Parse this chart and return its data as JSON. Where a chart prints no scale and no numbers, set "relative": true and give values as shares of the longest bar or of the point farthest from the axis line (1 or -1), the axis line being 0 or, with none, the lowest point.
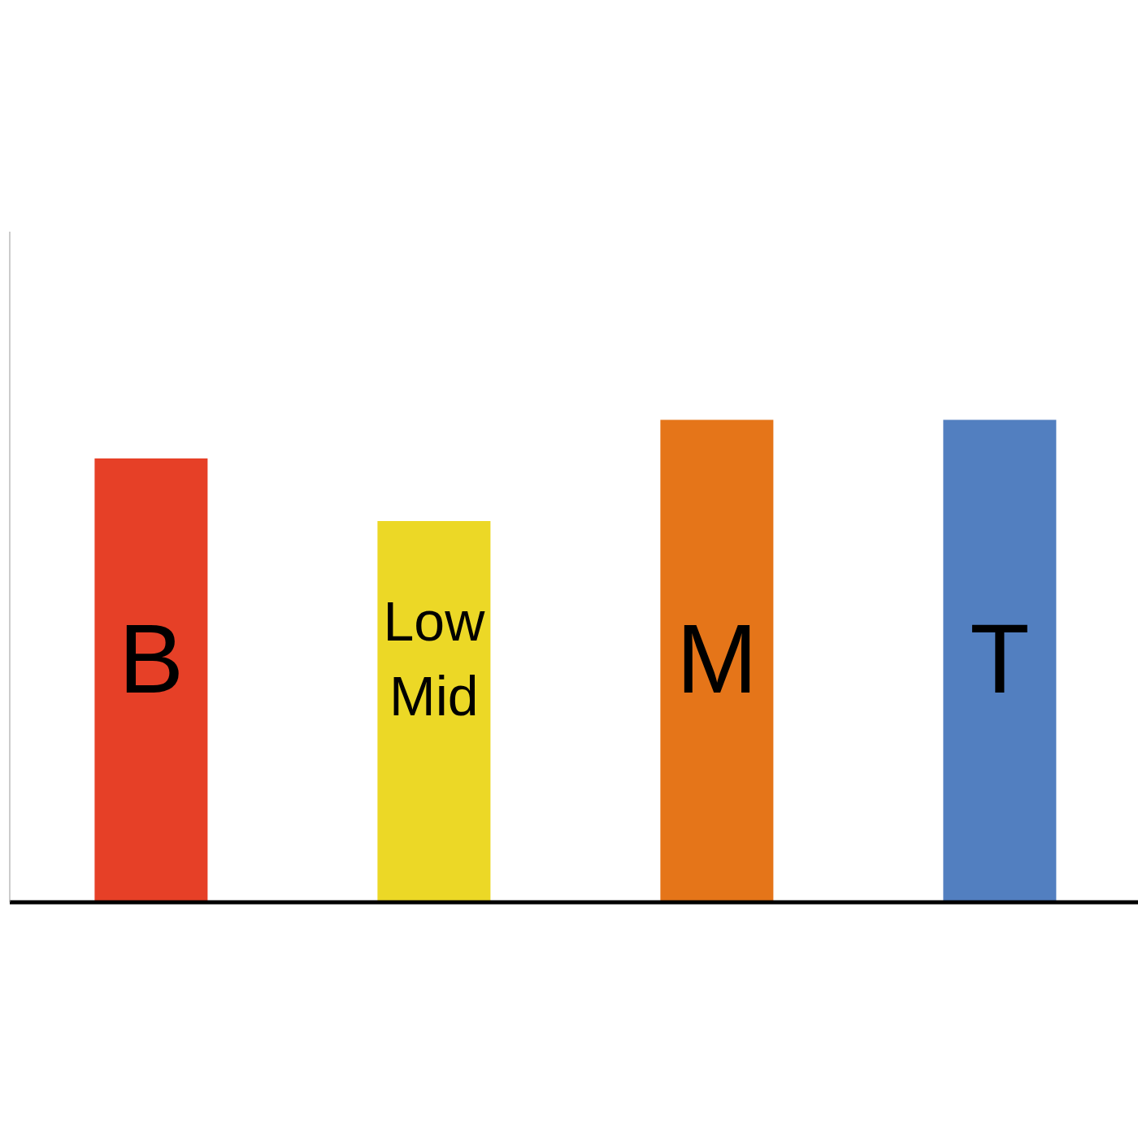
{
  "chart_data": {
    "type": "bar",
    "relative": true,
    "categories": [
      "B",
      "Low Mid",
      "M",
      "T"
    ],
    "values": [
      0.92,
      0.79,
      1,
      1
    ],
    "colors": [
      "#e64027",
      "#ecd826",
      "#e57519",
      "#527fc0"
    ],
    "legend": false,
    "grid": false
  }
}
